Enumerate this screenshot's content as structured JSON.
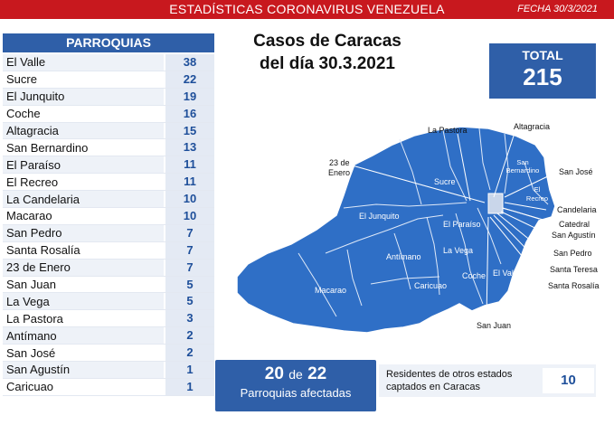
{
  "banner": {
    "title": "ESTADÍSTICAS CORONAVIRUS VENEZUELA",
    "date": "FECHA 30/3/2021"
  },
  "table": {
    "header": "PARROQUIAS",
    "rows": [
      {
        "name": "El Valle",
        "value": "38"
      },
      {
        "name": "Sucre",
        "value": "22"
      },
      {
        "name": "El Junquito",
        "value": "19"
      },
      {
        "name": "Coche",
        "value": "16"
      },
      {
        "name": "Altagracia",
        "value": "15"
      },
      {
        "name": "San Bernardino",
        "value": "13"
      },
      {
        "name": "El Paraíso",
        "value": "11"
      },
      {
        "name": "El Recreo",
        "value": "11"
      },
      {
        "name": "La Candelaria",
        "value": "10"
      },
      {
        "name": "Macarao",
        "value": "10"
      },
      {
        "name": "San Pedro",
        "value": "7"
      },
      {
        "name": "Santa Rosalía",
        "value": "7"
      },
      {
        "name": "23 de Enero",
        "value": "7"
      },
      {
        "name": "San Juan",
        "value": "5"
      },
      {
        "name": "La Vega",
        "value": "5"
      },
      {
        "name": "La Pastora",
        "value": "3"
      },
      {
        "name": "Antímano",
        "value": "2"
      },
      {
        "name": "San José",
        "value": "2"
      },
      {
        "name": "San Agustín",
        "value": "1"
      },
      {
        "name": "Caricuao",
        "value": "1"
      }
    ]
  },
  "heading": {
    "line1": "Casos de Caracas",
    "line2": "del día 30.3.2021"
  },
  "total": {
    "label": "TOTAL",
    "value": "215"
  },
  "map": {
    "fill_color": "#2f6fc6",
    "labels_inside": {
      "sucre": "Sucre",
      "el_junquito": "El Junquito",
      "el_paraiso": "El Paraíso",
      "la_vega": "La Vega",
      "antimano": "Antímano",
      "macarao": "Macarao",
      "caricuao": "Caricuao",
      "coche": "Coche",
      "el_valle": "El Valle",
      "san_bernardino_1": "San",
      "san_bernardino_2": "Bernardino",
      "el_recreo_1": "El",
      "el_recreo_2": "Recreo"
    },
    "callouts": {
      "la_pastora": "La Pastora",
      "altagracia": "Altagracia",
      "enero_1": "23 de",
      "enero_2": "Enero",
      "san_jose": "San José",
      "candelaria": "Candelaria",
      "catedral": "Catedral",
      "san_agustin": "San Agustín",
      "san_pedro": "San Pedro",
      "santa_teresa": "Santa Teresa",
      "santa_rosalia": "Santa Rosalía",
      "san_juan": "San Juan"
    }
  },
  "affected": {
    "count": "20",
    "of_word": "de",
    "total": "22",
    "label": "Parroquias afectadas"
  },
  "residents": {
    "label": "Residentes de otros estados captados en Caracas",
    "value": "10"
  }
}
